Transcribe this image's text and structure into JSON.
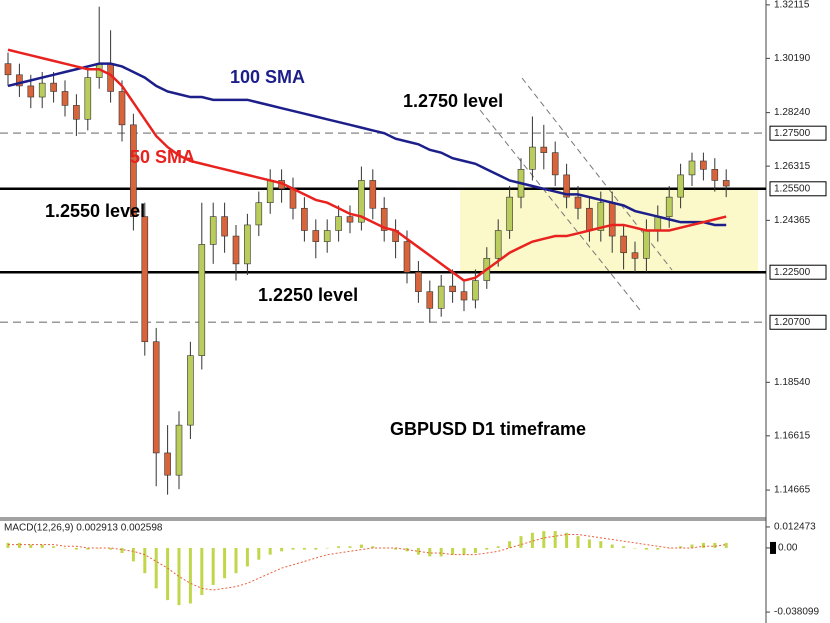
{
  "chart_data": [
    {
      "type": "candlestick",
      "ylim": [
        1.1366,
        1.3229
      ],
      "yticks": [
        {
          "value": 1.32115,
          "label": "1.32115"
        },
        {
          "value": 1.3019,
          "label": "1.30190"
        },
        {
          "value": 1.2824,
          "label": "1.28240"
        },
        1.26315,
        1.24365,
        {
          "value": 1.1854,
          "label": "1.18540"
        },
        1.16615,
        1.14665
      ],
      "levels": [
        {
          "value": 1.275,
          "label": "1.27500",
          "style": "dashed"
        },
        {
          "value": 1.255,
          "label": "1.25500",
          "style": "solid"
        },
        {
          "value": 1.225,
          "label": "1.22500",
          "style": "solid"
        },
        {
          "value": 1.207,
          "label": "1.20700",
          "style": "dashed"
        }
      ],
      "annotations": [
        "1.2750 level",
        "1.2550 level",
        "1.2250 level",
        "GBPUSD D1 timeframe"
      ],
      "up_color": "#b9cc5c",
      "down_color": "#d8643c",
      "open": [
        1.3,
        1.296,
        1.292,
        1.288,
        1.293,
        1.29,
        1.285,
        1.28,
        1.295,
        1.3,
        1.29,
        1.278,
        1.245,
        1.2,
        1.16,
        1.152,
        1.17,
        1.195,
        1.235,
        1.245,
        1.238,
        1.228,
        1.242,
        1.25,
        1.258,
        1.255,
        1.248,
        1.24,
        1.236,
        1.24,
        1.245,
        1.243,
        1.258,
        1.248,
        1.24,
        1.236,
        1.225,
        1.218,
        1.212,
        1.22,
        1.218,
        1.215,
        1.222,
        1.23,
        1.24,
        1.252,
        1.262,
        1.27,
        1.268,
        1.26,
        1.252,
        1.248,
        1.24,
        1.25,
        1.238,
        1.232,
        1.23,
        1.24,
        1.245,
        1.252,
        1.26,
        1.265,
        1.262,
        1.258
      ],
      "high": [
        1.304,
        1.3,
        1.296,
        1.297,
        1.297,
        1.294,
        1.289,
        1.299,
        1.3205,
        1.312,
        1.294,
        1.282,
        1.25,
        1.205,
        1.17,
        1.175,
        1.2,
        1.25,
        1.25,
        1.25,
        1.242,
        1.246,
        1.254,
        1.262,
        1.262,
        1.259,
        1.252,
        1.244,
        1.244,
        1.249,
        1.249,
        1.263,
        1.262,
        1.252,
        1.244,
        1.24,
        1.229,
        1.222,
        1.224,
        1.226,
        1.222,
        1.226,
        1.234,
        1.244,
        1.256,
        1.266,
        1.281,
        1.278,
        1.272,
        1.264,
        1.256,
        1.252,
        1.254,
        1.254,
        1.242,
        1.236,
        1.244,
        1.249,
        1.256,
        1.264,
        1.268,
        1.268,
        1.266,
        1.262
      ],
      "low": [
        1.292,
        1.288,
        1.284,
        1.284,
        1.286,
        1.281,
        1.274,
        1.276,
        1.291,
        1.286,
        1.272,
        1.24,
        1.195,
        1.148,
        1.145,
        1.147,
        1.165,
        1.19,
        1.228,
        1.232,
        1.222,
        1.224,
        1.238,
        1.246,
        1.25,
        1.244,
        1.236,
        1.23,
        1.232,
        1.236,
        1.239,
        1.24,
        1.244,
        1.236,
        1.23,
        1.221,
        1.214,
        1.207,
        1.209,
        1.214,
        1.211,
        1.212,
        1.219,
        1.227,
        1.237,
        1.248,
        1.258,
        1.262,
        1.256,
        1.248,
        1.244,
        1.236,
        1.236,
        1.232,
        1.226,
        1.225,
        1.225,
        1.236,
        1.241,
        1.248,
        1.256,
        1.258,
        1.254,
        1.252
      ],
      "close": [
        1.296,
        1.292,
        1.288,
        1.293,
        1.29,
        1.285,
        1.28,
        1.295,
        1.3,
        1.29,
        1.278,
        1.245,
        1.2,
        1.16,
        1.152,
        1.17,
        1.195,
        1.235,
        1.245,
        1.238,
        1.228,
        1.242,
        1.25,
        1.258,
        1.255,
        1.248,
        1.24,
        1.236,
        1.24,
        1.245,
        1.243,
        1.258,
        1.248,
        1.24,
        1.236,
        1.225,
        1.218,
        1.212,
        1.22,
        1.218,
        1.215,
        1.222,
        1.23,
        1.24,
        1.252,
        1.262,
        1.27,
        1.268,
        1.26,
        1.252,
        1.248,
        1.24,
        1.25,
        1.238,
        1.232,
        1.23,
        1.24,
        1.245,
        1.252,
        1.26,
        1.265,
        1.262,
        1.258,
        1.256
      ],
      "series": [
        {
          "name": "100 SMA",
          "color": "#1c1f8a",
          "values": [
            1.292,
            1.293,
            1.294,
            1.295,
            1.296,
            1.297,
            1.298,
            1.299,
            1.3,
            1.3,
            1.299,
            1.297,
            1.295,
            1.292,
            1.29,
            1.289,
            1.288,
            1.288,
            1.287,
            1.287,
            1.287,
            1.287,
            1.286,
            1.285,
            1.284,
            1.283,
            1.282,
            1.281,
            1.28,
            1.279,
            1.278,
            1.277,
            1.276,
            1.275,
            1.273,
            1.272,
            1.271,
            1.269,
            1.268,
            1.266,
            1.265,
            1.264,
            1.262,
            1.26,
            1.258,
            1.257,
            1.256,
            1.255,
            1.254,
            1.253,
            1.253,
            1.252,
            1.251,
            1.25,
            1.249,
            1.247,
            1.246,
            1.245,
            1.244,
            1.243,
            1.243,
            1.243,
            1.242,
            1.242
          ]
        },
        {
          "name": "50 SMA",
          "color": "#e8231f",
          "values": [
            1.305,
            1.304,
            1.303,
            1.302,
            1.301,
            1.3,
            1.299,
            1.298,
            1.298,
            1.296,
            1.292,
            1.286,
            1.28,
            1.274,
            1.27,
            1.267,
            1.265,
            1.264,
            1.263,
            1.262,
            1.261,
            1.26,
            1.259,
            1.258,
            1.257,
            1.255,
            1.253,
            1.251,
            1.25,
            1.248,
            1.246,
            1.245,
            1.243,
            1.241,
            1.24,
            1.237,
            1.234,
            1.231,
            1.228,
            1.225,
            1.222,
            1.223,
            1.226,
            1.229,
            1.232,
            1.234,
            1.236,
            1.237,
            1.238,
            1.238,
            1.239,
            1.24,
            1.241,
            1.242,
            1.242,
            1.241,
            1.24,
            1.24,
            1.24,
            1.241,
            1.242,
            1.243,
            1.244,
            1.245
          ]
        }
      ]
    },
    {
      "type": "macd",
      "label": "MACD(12,26,9) 0.002913 0.002598",
      "ylim": [
        -0.0446,
        0.0166
      ],
      "yticks": [
        0.012473,
        {
          "value": 0,
          "label": "0.00"
        },
        -0.038099
      ],
      "histogram": {
        "color": "#c2d64a",
        "values": [
          0.003,
          0.003,
          0.002,
          0.002,
          0.001,
          0.0,
          -0.001,
          -0.001,
          0.0,
          -0.001,
          -0.003,
          -0.008,
          -0.015,
          -0.024,
          -0.031,
          -0.034,
          -0.033,
          -0.028,
          -0.022,
          -0.018,
          -0.015,
          -0.011,
          -0.007,
          -0.004,
          -0.002,
          -0.001,
          -0.001,
          -0.001,
          0.0,
          0.001,
          0.001,
          0.002,
          0.001,
          0.0,
          -0.001,
          -0.002,
          -0.004,
          -0.005,
          -0.005,
          -0.004,
          -0.004,
          -0.003,
          -0.001,
          0.001,
          0.004,
          0.007,
          0.009,
          0.01,
          0.01,
          0.009,
          0.007,
          0.005,
          0.004,
          0.002,
          0.001,
          0.0,
          -0.001,
          -0.001,
          0.0,
          0.001,
          0.002,
          0.003,
          0.003,
          0.003
        ]
      },
      "signal": {
        "color": "#e8603c",
        "values": [
          0.002,
          0.002,
          0.002,
          0.002,
          0.002,
          0.001,
          0.001,
          0.0,
          0.0,
          0.0,
          -0.001,
          -0.002,
          -0.004,
          -0.008,
          -0.012,
          -0.017,
          -0.021,
          -0.024,
          -0.025,
          -0.024,
          -0.023,
          -0.021,
          -0.018,
          -0.015,
          -0.012,
          -0.01,
          -0.008,
          -0.006,
          -0.004,
          -0.003,
          -0.002,
          -0.001,
          0.0,
          0.0,
          0.0,
          -0.001,
          -0.002,
          -0.003,
          -0.003,
          -0.004,
          -0.004,
          -0.004,
          -0.003,
          -0.002,
          0.0,
          0.002,
          0.004,
          0.006,
          0.007,
          0.008,
          0.008,
          0.007,
          0.006,
          0.005,
          0.004,
          0.003,
          0.002,
          0.001,
          0.0,
          0.0,
          0.0,
          0.001,
          0.001,
          0.002
        ]
      }
    }
  ]
}
